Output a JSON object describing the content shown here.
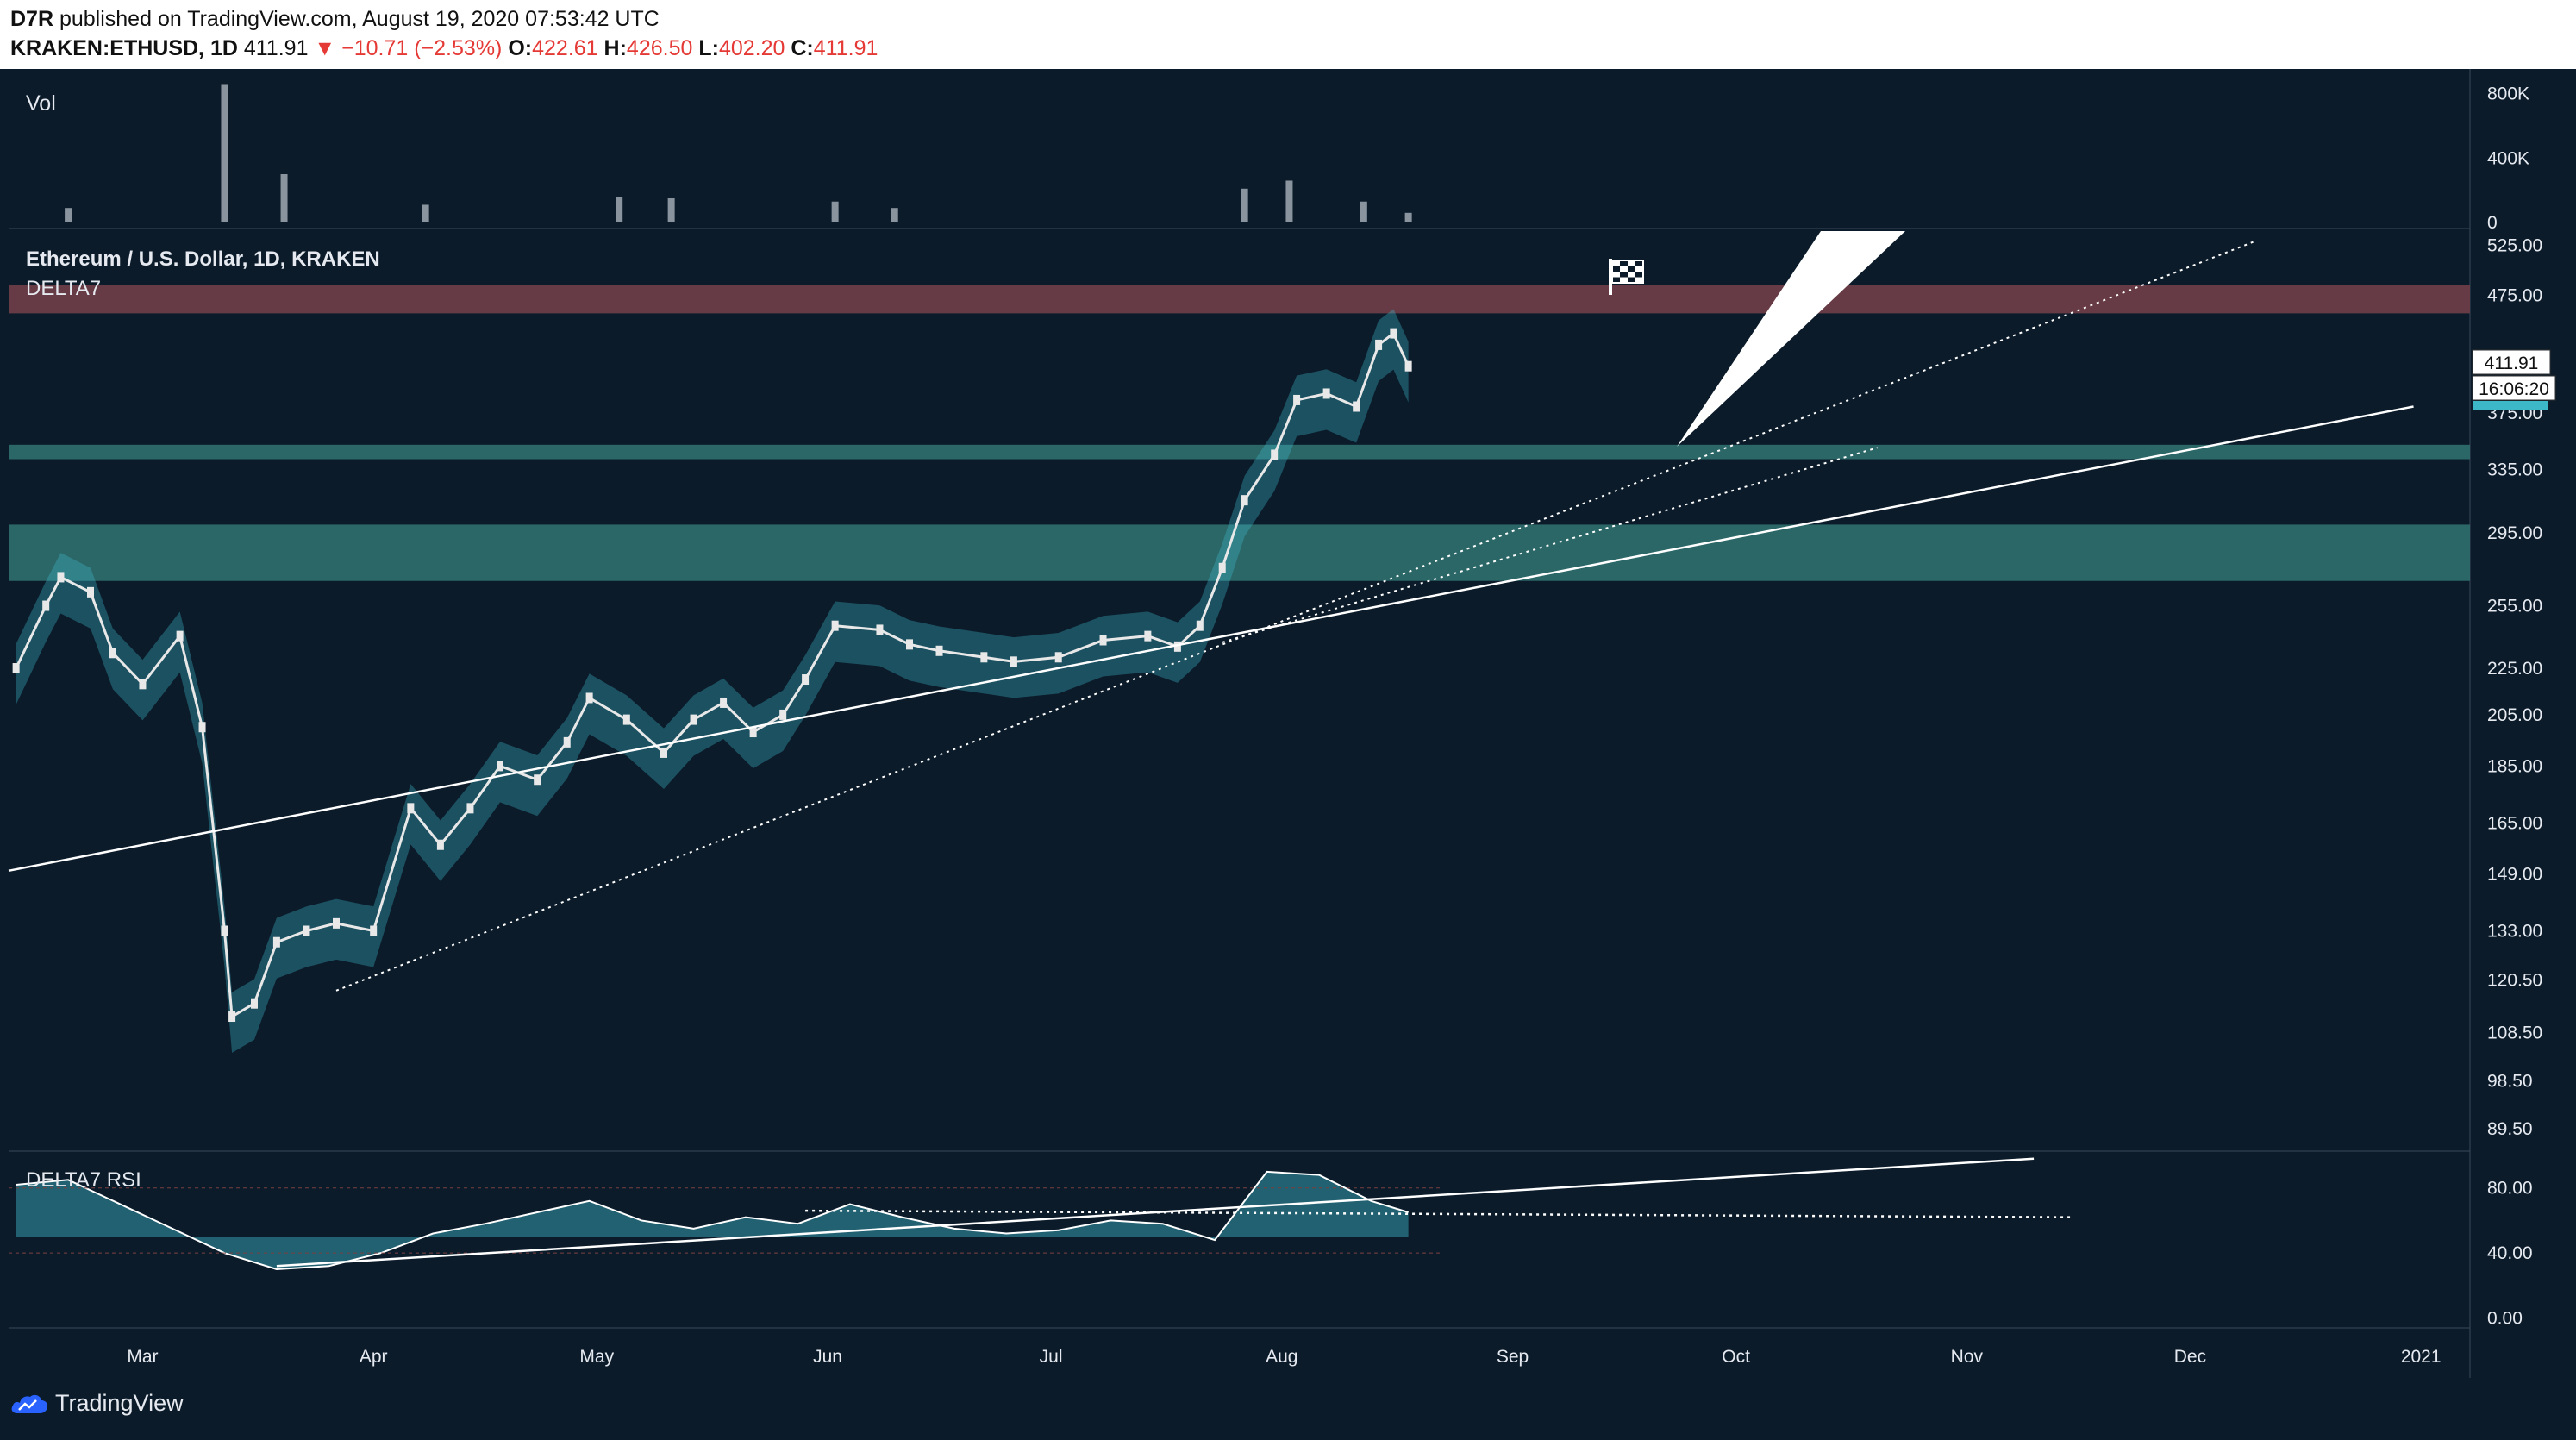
{
  "publish": {
    "author": "D7R",
    "text": " published on TradingView.com, August 19, 2020 07:53:42 UTC"
  },
  "quote": {
    "symbol": "KRAKEN:ETHUSD, 1D",
    "last": "411.91",
    "arrow": "▼",
    "change": "−10.71 (−2.53%)",
    "o_label": "O:",
    "o": "422.61",
    "h_label": "H:",
    "h": "426.50",
    "l_label": "L:",
    "l": "402.20",
    "c_label": "C:",
    "c": "411.91"
  },
  "panes": {
    "volume_label": "Vol",
    "main_title": "Ethereum / U.S. Dollar, 1D, KRAKEN",
    "indicator_label": "DELTA7",
    "rsi_label": "DELTA7 RSI"
  },
  "price_badge": {
    "value": "411.91",
    "countdown": "16:06:20"
  },
  "footer": {
    "brand": "TradingView"
  },
  "colors": {
    "background": "#0b1b2a",
    "teal": "#3db8c8",
    "zone_teal": "#2e6b6c",
    "zone_red": "#6b3d47",
    "candle": "#e8e8e8",
    "rsi_bg_teal": "#1f4b5a",
    "rsi_bg_grey": "#5d6874"
  },
  "chart_data": [
    {
      "type": "bar",
      "pane": "volume",
      "y_ticks": [
        "800K",
        "400K",
        "0"
      ],
      "y_tick_values": [
        800000,
        400000,
        0
      ],
      "note_series": "daily volume",
      "x": [
        "2020-02-20",
        "2020-03-12",
        "2020-03-20",
        "2020-04-08",
        "2020-05-04",
        "2020-05-11",
        "2020-06-02",
        "2020-06-10",
        "2020-07-27",
        "2020-08-02",
        "2020-08-12",
        "2020-08-18"
      ],
      "values": [
        90000,
        860000,
        300000,
        110000,
        160000,
        150000,
        130000,
        90000,
        210000,
        260000,
        130000,
        60000
      ],
      "ylim": [
        0,
        900000
      ]
    },
    {
      "type": "line",
      "pane": "price",
      "title": "Ethereum / U.S. Dollar, 1D, KRAKEN",
      "y_scale": "log",
      "y_ticks": [
        "525.00",
        "475.00",
        "375.00",
        "335.00",
        "295.00",
        "255.00",
        "225.00",
        "205.00",
        "185.00",
        "165.00",
        "149.00",
        "133.00",
        "120.50",
        "108.50",
        "98.50",
        "89.50"
      ],
      "y_tick_values": [
        525,
        475,
        375,
        335,
        295,
        255,
        225,
        205,
        185,
        165,
        149,
        133,
        120.5,
        108.5,
        98.5,
        89.5
      ],
      "x_ticks": [
        "Mar",
        "Apr",
        "May",
        "Jun",
        "Jul",
        "Aug",
        "Sep",
        "Oct",
        "Nov",
        "Dec",
        "2021"
      ],
      "x_tick_dates": [
        "2020-03-01",
        "2020-04-01",
        "2020-05-01",
        "2020-06-01",
        "2020-07-01",
        "2020-08-01",
        "2020-09-01",
        "2020-10-01",
        "2020-11-01",
        "2020-12-01",
        "2021-01-01"
      ],
      "xlim": [
        "2020-02-12",
        "2021-01-07"
      ],
      "ylim": [
        86,
        540
      ],
      "series": [
        {
          "x": [
            "2020-02-13",
            "2020-02-17",
            "2020-02-19",
            "2020-02-23",
            "2020-02-26",
            "2020-03-01",
            "2020-03-06",
            "2020-03-09",
            "2020-03-12",
            "2020-03-13",
            "2020-03-16",
            "2020-03-19",
            "2020-03-23",
            "2020-03-27",
            "2020-04-01",
            "2020-04-06",
            "2020-04-10",
            "2020-04-14",
            "2020-04-18",
            "2020-04-23",
            "2020-04-27",
            "2020-04-30",
            "2020-05-05",
            "2020-05-10",
            "2020-05-14",
            "2020-05-18",
            "2020-05-22",
            "2020-05-26",
            "2020-05-29",
            "2020-06-02",
            "2020-06-08",
            "2020-06-12",
            "2020-06-16",
            "2020-06-22",
            "2020-06-26",
            "2020-07-02",
            "2020-07-08",
            "2020-07-14",
            "2020-07-18",
            "2020-07-21",
            "2020-07-24",
            "2020-07-27",
            "2020-07-31",
            "2020-08-03",
            "2020-08-07",
            "2020-08-11",
            "2020-08-14",
            "2020-08-16",
            "2020-08-18"
          ],
          "y": [
            225,
            255,
            270,
            262,
            232,
            218,
            240,
            200,
            133,
            112,
            115,
            130,
            133,
            135,
            133,
            170,
            158,
            170,
            185,
            180,
            194,
            212,
            203,
            190,
            203,
            210,
            198,
            205,
            220,
            245,
            243,
            236,
            233,
            230,
            228,
            230,
            238,
            240,
            235,
            245,
            275,
            315,
            345,
            385,
            390,
            380,
            430,
            440,
            412
          ]
        }
      ],
      "zones": [
        {
          "name": "resistance-red",
          "from": 458,
          "to": 485
        },
        {
          "name": "support-teal-upper",
          "from": 342,
          "to": 352
        },
        {
          "name": "support-teal-lower",
          "from": 268,
          "to": 300
        }
      ],
      "lines": [
        {
          "name": "trendline-solid",
          "x": [
            "2020-02-12",
            "2020-12-31"
          ],
          "y": [
            150,
            380
          ]
        },
        {
          "name": "trendline-dotted-upper",
          "x": [
            "2020-03-27",
            "2020-12-10"
          ],
          "y": [
            118,
            530
          ]
        },
        {
          "name": "trendline-dotted-lower",
          "x": [
            "2020-07-24",
            "2020-10-20"
          ],
          "y": [
            237,
            350
          ]
        }
      ],
      "last_price": 411.91
    },
    {
      "type": "area",
      "pane": "rsi",
      "title": "DELTA7 RSI",
      "y_ticks": [
        "80.00",
        "40.00",
        "0.00"
      ],
      "y_tick_values": [
        80,
        40,
        0
      ],
      "ylim": [
        -5,
        100
      ],
      "series": [
        {
          "x": [
            "2020-02-13",
            "2020-02-20",
            "2020-02-27",
            "2020-03-05",
            "2020-03-12",
            "2020-03-19",
            "2020-03-26",
            "2020-04-02",
            "2020-04-09",
            "2020-04-16",
            "2020-04-23",
            "2020-04-30",
            "2020-05-07",
            "2020-05-14",
            "2020-05-21",
            "2020-05-28",
            "2020-06-04",
            "2020-06-11",
            "2020-06-18",
            "2020-06-25",
            "2020-07-02",
            "2020-07-09",
            "2020-07-16",
            "2020-07-23",
            "2020-07-30",
            "2020-08-06",
            "2020-08-13",
            "2020-08-18"
          ],
          "y": [
            82,
            85,
            70,
            55,
            40,
            30,
            32,
            40,
            52,
            58,
            65,
            72,
            60,
            55,
            62,
            58,
            70,
            62,
            55,
            52,
            54,
            60,
            58,
            48,
            90,
            88,
            72,
            65
          ]
        }
      ],
      "lines": [
        {
          "name": "rsi-trendline",
          "x": [
            "2020-03-19",
            "2020-11-10"
          ],
          "y": [
            32,
            98
          ]
        },
        {
          "name": "rsi-dotted",
          "x": [
            "2020-05-29",
            "2020-11-15"
          ],
          "y": [
            66,
            62
          ]
        }
      ]
    }
  ]
}
